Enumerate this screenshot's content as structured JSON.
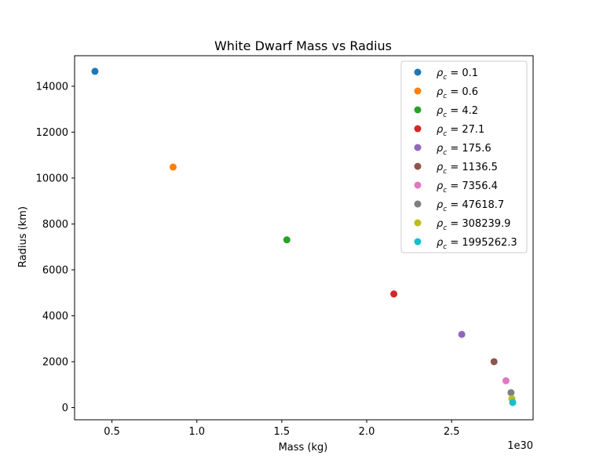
{
  "chart_data": {
    "type": "scatter",
    "title": "White Dwarf Mass vs Radius",
    "xlabel": "Mass (kg)",
    "ylabel": "Radius (km)",
    "x_offset_label": "1e30",
    "xlim": [
      0.28,
      2.98
    ],
    "ylim": [
      -530,
      15330
    ],
    "xticks": [
      0.5,
      1.0,
      1.5,
      2.0,
      2.5
    ],
    "xtick_labels": [
      "0.5",
      "1.0",
      "1.5",
      "2.0",
      "2.5"
    ],
    "yticks": [
      0,
      2000,
      4000,
      6000,
      8000,
      10000,
      12000,
      14000
    ],
    "ytick_labels": [
      "0",
      "2000",
      "4000",
      "6000",
      "8000",
      "10000",
      "12000",
      "14000"
    ],
    "grid": false,
    "legend_position": "top-right",
    "legend_symbol": "ρ",
    "legend_subscript": "c",
    "series": [
      {
        "name": "0.1",
        "color": "#1f77b4",
        "x": 0.4,
        "y": 14650
      },
      {
        "name": "0.6",
        "color": "#ff7f0e",
        "x": 0.86,
        "y": 10480
      },
      {
        "name": "4.2",
        "color": "#2ca02c",
        "x": 1.53,
        "y": 7310
      },
      {
        "name": "27.1",
        "color": "#d62728",
        "x": 2.16,
        "y": 4950
      },
      {
        "name": "175.6",
        "color": "#9467bd",
        "x": 2.56,
        "y": 3190
      },
      {
        "name": "1136.5",
        "color": "#8c564b",
        "x": 2.75,
        "y": 2000
      },
      {
        "name": "7356.4",
        "color": "#e377c2",
        "x": 2.82,
        "y": 1170
      },
      {
        "name": "47618.7",
        "color": "#7f7f7f",
        "x": 2.85,
        "y": 650
      },
      {
        "name": "308239.9",
        "color": "#bcbd22",
        "x": 2.855,
        "y": 390
      },
      {
        "name": "1995262.3",
        "color": "#17becf",
        "x": 2.86,
        "y": 220
      }
    ]
  }
}
